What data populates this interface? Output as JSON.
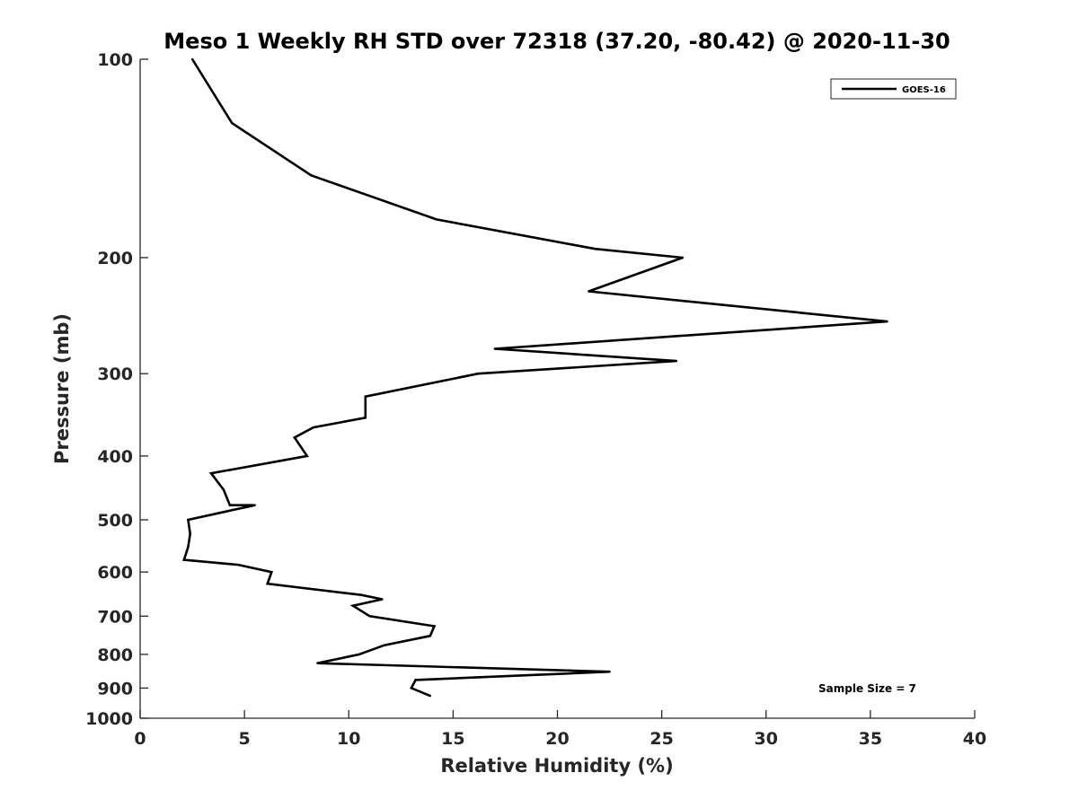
{
  "chart_data": {
    "type": "line",
    "title": "Meso 1 Weekly RH STD over 72318 (37.20, -80.42) @ 2020-11-30",
    "xlabel": "Relative Humidity (%)",
    "ylabel": "Pressure (mb)",
    "xlim": [
      0,
      40
    ],
    "ylim": [
      100,
      1000
    ],
    "y_scale": "log",
    "y_reversed": true,
    "x_ticks": [
      0,
      5,
      10,
      15,
      20,
      25,
      30,
      35,
      40
    ],
    "x_tick_labels": [
      "0",
      "5",
      "10",
      "15",
      "20",
      "25",
      "30",
      "35",
      "40"
    ],
    "y_ticks": [
      100,
      200,
      300,
      400,
      500,
      600,
      700,
      800,
      900,
      1000
    ],
    "y_tick_labels": [
      "100",
      "200",
      "300",
      "400",
      "500",
      "600",
      "700",
      "800",
      "900",
      "1000"
    ],
    "grid": false,
    "legend_position": "top-right",
    "annotation": "Sample Size = 7",
    "series": [
      {
        "name": "GOES-16",
        "color": "#000000",
        "points": [
          {
            "x": 2.5,
            "y": 100
          },
          {
            "x": 4.4,
            "y": 125
          },
          {
            "x": 8.2,
            "y": 150
          },
          {
            "x": 14.2,
            "y": 175
          },
          {
            "x": 21.8,
            "y": 194
          },
          {
            "x": 26.0,
            "y": 200
          },
          {
            "x": 21.5,
            "y": 225
          },
          {
            "x": 35.8,
            "y": 250
          },
          {
            "x": 17.0,
            "y": 275
          },
          {
            "x": 25.7,
            "y": 287
          },
          {
            "x": 16.2,
            "y": 300
          },
          {
            "x": 10.8,
            "y": 325
          },
          {
            "x": 10.8,
            "y": 350
          },
          {
            "x": 8.3,
            "y": 362
          },
          {
            "x": 7.4,
            "y": 375
          },
          {
            "x": 8.0,
            "y": 400
          },
          {
            "x": 3.4,
            "y": 425
          },
          {
            "x": 4.0,
            "y": 450
          },
          {
            "x": 4.3,
            "y": 475
          },
          {
            "x": 5.5,
            "y": 475
          },
          {
            "x": 2.3,
            "y": 500
          },
          {
            "x": 2.4,
            "y": 525
          },
          {
            "x": 2.3,
            "y": 550
          },
          {
            "x": 2.1,
            "y": 575
          },
          {
            "x": 4.7,
            "y": 585
          },
          {
            "x": 6.3,
            "y": 600
          },
          {
            "x": 6.1,
            "y": 625
          },
          {
            "x": 10.6,
            "y": 650
          },
          {
            "x": 11.6,
            "y": 660
          },
          {
            "x": 10.2,
            "y": 675
          },
          {
            "x": 11.0,
            "y": 700
          },
          {
            "x": 14.1,
            "y": 725
          },
          {
            "x": 13.9,
            "y": 750
          },
          {
            "x": 11.7,
            "y": 775
          },
          {
            "x": 10.5,
            "y": 800
          },
          {
            "x": 8.5,
            "y": 825
          },
          {
            "x": 22.5,
            "y": 850
          },
          {
            "x": 13.2,
            "y": 875
          },
          {
            "x": 13.0,
            "y": 900
          },
          {
            "x": 13.9,
            "y": 925
          }
        ]
      }
    ]
  }
}
